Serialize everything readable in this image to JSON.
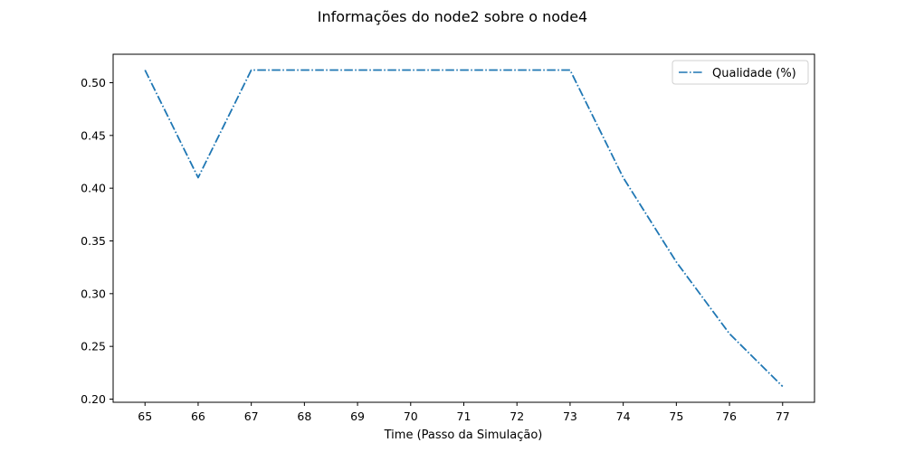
{
  "chart_data": {
    "type": "line",
    "title": "Informações do node2 sobre o node4",
    "xlabel": "Time (Passo da Simulação)",
    "ylabel": "",
    "x": [
      65,
      66,
      67,
      68,
      69,
      70,
      71,
      72,
      73,
      74,
      75,
      76,
      77
    ],
    "series": [
      {
        "name": "Qualidade (%)",
        "values": [
          0.512,
          0.41,
          0.512,
          0.512,
          0.512,
          0.512,
          0.512,
          0.512,
          0.512,
          0.41,
          0.33,
          0.262,
          0.212
        ]
      }
    ],
    "xlim": [
      64.4,
      77.6
    ],
    "ylim": [
      0.197,
      0.527
    ],
    "xticks": [
      "65",
      "66",
      "67",
      "68",
      "69",
      "70",
      "71",
      "72",
      "73",
      "74",
      "75",
      "76",
      "77"
    ],
    "yticks": [
      "0.20",
      "0.25",
      "0.30",
      "0.35",
      "0.40",
      "0.45",
      "0.50"
    ],
    "grid": false,
    "legend_position": "top-right",
    "colors": {
      "series": "#1f77b4",
      "axes": "#000000"
    }
  }
}
